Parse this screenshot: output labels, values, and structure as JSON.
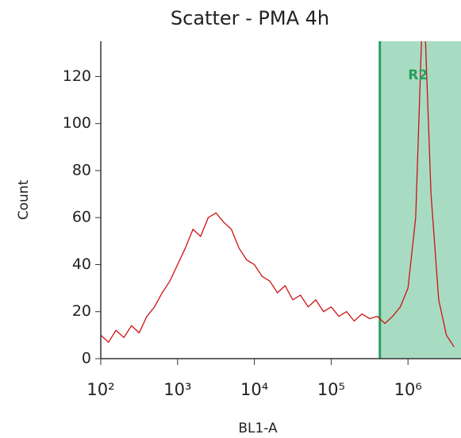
{
  "chart_data": {
    "type": "line",
    "title": "Scatter - PMA 4h",
    "x_label": "BL1-A",
    "y_label": "Count",
    "x_scale": "log",
    "x": [
      100,
      126,
      158,
      200,
      251,
      316,
      398,
      501,
      631,
      794,
      1000,
      1259,
      1585,
      1995,
      2512,
      3162,
      3981,
      5012,
      6310,
      7943,
      10000,
      12589,
      15849,
      19953,
      25119,
      31623,
      39811,
      50119,
      63096,
      79433,
      100000,
      125893,
      158489,
      199526,
      251189,
      316228,
      398107,
      501187,
      630957,
      794328,
      1000000,
      1258925,
      1584893,
      1995262,
      2511886,
      3162278,
      3981072
    ],
    "values": [
      10,
      7,
      12,
      9,
      14,
      11,
      18,
      22,
      28,
      33,
      40,
      47,
      55,
      52,
      60,
      62,
      58,
      55,
      47,
      42,
      40,
      35,
      33,
      28,
      31,
      25,
      27,
      22,
      25,
      20,
      22,
      18,
      20,
      16,
      19,
      17,
      18,
      15,
      18,
      22,
      30,
      60,
      160,
      70,
      25,
      10,
      5
    ],
    "color": "#cc1111",
    "xlim": [
      100,
      4900000
    ],
    "ylim": [
      0,
      135
    ],
    "xticks": [
      {
        "value": 100,
        "label": "10²"
      },
      {
        "value": 1000,
        "label": "10³"
      },
      {
        "value": 10000,
        "label": "10⁴"
      },
      {
        "value": 100000,
        "label": "10⁵"
      },
      {
        "value": 1000000,
        "label": "10⁶"
      }
    ],
    "yticks": [
      0,
      20,
      40,
      60,
      80,
      100,
      120
    ],
    "gate": {
      "label": "R2",
      "from": 430000,
      "color": "#2a9d5f",
      "fill": "#a8dcc2"
    }
  }
}
